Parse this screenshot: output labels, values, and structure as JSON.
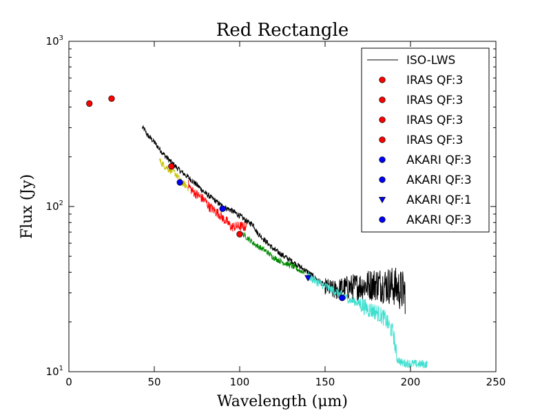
{
  "chart_data": {
    "type": "line",
    "title": "Red Rectangle",
    "xlabel": "Wavelength (μm)",
    "ylabel": "Flux (Jy)",
    "xlim": [
      0,
      250
    ],
    "ylim": [
      10,
      1000
    ],
    "yscale": "log",
    "xticks": [
      0,
      50,
      100,
      150,
      200,
      250
    ],
    "yticks": [
      {
        "value": 10,
        "base": "10",
        "exp": "1"
      },
      {
        "value": 100,
        "base": "10",
        "exp": "2"
      },
      {
        "value": 1000,
        "base": "10",
        "exp": "3"
      }
    ],
    "legend_position": "top-right",
    "series": [
      {
        "name": "ISO-LWS",
        "kind": "line",
        "color": "#000000",
        "noise": 0.04,
        "x": [
          43,
          44,
          46,
          48,
          50,
          55,
          60,
          65,
          70,
          75,
          80,
          85,
          90,
          95,
          100,
          105,
          108,
          110,
          115,
          120,
          130,
          140,
          150,
          155,
          160,
          170,
          180,
          190,
          197
        ],
        "y": [
          300,
          295,
          270,
          258,
          245,
          210,
          185,
          165,
          150,
          135,
          120,
          110,
          100,
          95,
          88,
          80,
          78,
          70,
          62,
          55,
          47,
          40,
          33,
          31,
          32,
          33,
          34,
          33,
          30
        ]
      },
      {
        "name": "segment-yellow",
        "kind": "line",
        "color": "#c8c000",
        "noise": 0.05,
        "x": [
          53,
          55,
          58,
          60,
          62,
          64,
          66,
          68,
          70
        ],
        "y": [
          190,
          180,
          170,
          165,
          160,
          150,
          140,
          135,
          130
        ]
      },
      {
        "name": "segment-red",
        "kind": "line",
        "color": "#ff0000",
        "noise": 0.07,
        "x": [
          70,
          72,
          75,
          78,
          80,
          82,
          85,
          88,
          90,
          93,
          95,
          100,
          104
        ],
        "y": [
          135,
          125,
          118,
          112,
          108,
          100,
          95,
          90,
          85,
          80,
          75,
          76,
          75
        ]
      },
      {
        "name": "segment-green",
        "kind": "line",
        "color": "#008800",
        "noise": 0.04,
        "x": [
          102,
          105,
          108,
          110,
          115,
          120,
          125,
          130,
          135,
          138
        ],
        "y": [
          68,
          64,
          60,
          58,
          54,
          49,
          46,
          44,
          41,
          40
        ]
      },
      {
        "name": "segment-cyan",
        "kind": "line",
        "color": "#40e0d0",
        "noise": 0.06,
        "x": [
          140,
          145,
          150,
          155,
          160,
          165,
          170,
          175,
          180,
          185,
          190,
          192,
          195,
          200,
          205,
          210
        ],
        "y": [
          38,
          35,
          33,
          31,
          29,
          27,
          26,
          24,
          23,
          21,
          17,
          12,
          11.3,
          11.2,
          11.1,
          11.1
        ]
      },
      {
        "name": "IRAS QF:3",
        "kind": "marker",
        "marker": "circle",
        "color": "#ff0000",
        "x": [
          12
        ],
        "y": [
          420
        ]
      },
      {
        "name": "IRAS QF:3",
        "kind": "marker",
        "marker": "circle",
        "color": "#ff0000",
        "x": [
          25
        ],
        "y": [
          450
        ]
      },
      {
        "name": "IRAS QF:3",
        "kind": "marker",
        "marker": "circle",
        "color": "#ff0000",
        "x": [
          60
        ],
        "y": [
          175
        ]
      },
      {
        "name": "IRAS QF:3",
        "kind": "marker",
        "marker": "circle",
        "color": "#ff0000",
        "x": [
          100
        ],
        "y": [
          68
        ]
      },
      {
        "name": "AKARI QF:3",
        "kind": "marker",
        "marker": "circle",
        "color": "#0000ff",
        "x": [
          65
        ],
        "y": [
          140
        ]
      },
      {
        "name": "AKARI QF:3",
        "kind": "marker",
        "marker": "circle",
        "color": "#0000ff",
        "x": [
          90
        ],
        "y": [
          97
        ]
      },
      {
        "name": "AKARI QF:1",
        "kind": "marker",
        "marker": "triangle-down",
        "color": "#0000ff",
        "x": [
          140
        ],
        "y": [
          37
        ]
      },
      {
        "name": "AKARI QF:3",
        "kind": "marker",
        "marker": "circle",
        "color": "#0000ff",
        "x": [
          160
        ],
        "y": [
          28
        ]
      }
    ],
    "legend": [
      {
        "label": "ISO-LWS",
        "marker": "line",
        "color": "#000000"
      },
      {
        "label": "IRAS QF:3",
        "marker": "circle",
        "color": "#ff0000"
      },
      {
        "label": "IRAS QF:3",
        "marker": "circle",
        "color": "#ff0000"
      },
      {
        "label": "IRAS QF:3",
        "marker": "circle",
        "color": "#ff0000"
      },
      {
        "label": "IRAS QF:3",
        "marker": "circle",
        "color": "#ff0000"
      },
      {
        "label": "AKARI QF:3",
        "marker": "circle",
        "color": "#0000ff"
      },
      {
        "label": "AKARI QF:3",
        "marker": "circle",
        "color": "#0000ff"
      },
      {
        "label": "AKARI QF:1",
        "marker": "triangle-down",
        "color": "#0000ff"
      },
      {
        "label": "AKARI QF:3",
        "marker": "circle",
        "color": "#0000ff"
      }
    ]
  }
}
